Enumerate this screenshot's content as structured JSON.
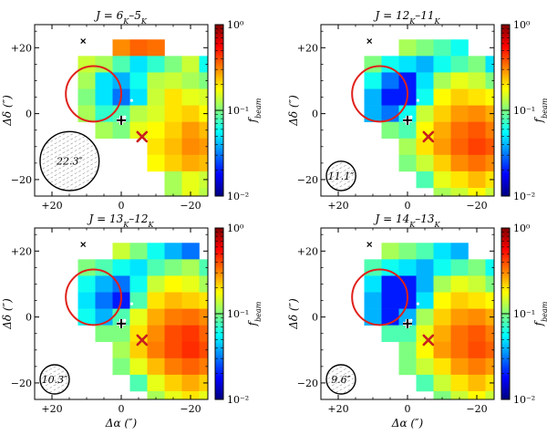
{
  "figure": {
    "colorscale": {
      "colors": [
        "#00007f",
        "#0000ff",
        "#007fff",
        "#00ffff",
        "#7fff7f",
        "#ffff00",
        "#ff7f00",
        "#ff0000",
        "#7f0000"
      ],
      "ticks": [
        "10⁻²",
        "10⁻¹",
        "10⁰"
      ],
      "label": "f_beam"
    },
    "colors": {
      "circle": "#e0201a",
      "cross": "#c81e1e",
      "plus": "#000000",
      "star_marker": "#ffffff"
    }
  },
  "chart_data": [
    {
      "type": "heatmap",
      "title": "J = 6_K–5_K",
      "xlabel": "",
      "ylabel": "Δδ (″)",
      "colorbar_label": "f_beam",
      "xlim": [
        25,
        -25
      ],
      "ylim": [
        -25,
        27
      ],
      "xticks": [
        "+20",
        "0",
        "−20"
      ],
      "yticks": [
        "+20",
        "0",
        "−20"
      ],
      "colorbar_range": [
        0.01,
        1
      ],
      "colorbar_ticks": [
        "10⁻²",
        "10⁻¹",
        "10⁰"
      ],
      "beam": "22.3″",
      "grid_step_arcsec": 5,
      "grid_x_first": 10,
      "grid_y_first": 20,
      "cells": [
        [
          0,
          0,
          0.3,
          0.36,
          0.34
        ],
        [
          0.14,
          0.12,
          0.08,
          0.05,
          0.07,
          0.1,
          0.14,
          0.06,
          0.04
        ],
        [
          0.12,
          0.05,
          0.04,
          0.06,
          0.13,
          0.14,
          0.12,
          0.1,
          0.08,
          0.09
        ],
        [
          0.1,
          0.05,
          0.03,
          0.05,
          0.14,
          0.2,
          0.16,
          0.15,
          0.13,
          0.14,
          0.12
        ],
        [
          0.12,
          0.07,
          0.08,
          0.13,
          0.15,
          0.2,
          0.22,
          0.18,
          0.16,
          0.15,
          0.12
        ],
        [
          0,
          0.12,
          0.1,
          0.16,
          0.18,
          0.22,
          0.28,
          0.24,
          0.18,
          0.15,
          0.08,
          0.1
        ],
        [
          0,
          0,
          0,
          0,
          0.2,
          0.24,
          0.3,
          0.28,
          0.22,
          0.16,
          0.12,
          0.13
        ],
        [
          0,
          0,
          0,
          0,
          0.18,
          0.22,
          0.26,
          0.24,
          0.2,
          0.18,
          0.15,
          0.09
        ],
        [
          0,
          0,
          0,
          0,
          0,
          0.12,
          0.16,
          0.14,
          0.12,
          0.1,
          0
        ],
        [
          0,
          0,
          0,
          0,
          0,
          0.12,
          0.16,
          0.13,
          0.18,
          0.1
        ]
      ],
      "circle": {
        "ra": 8,
        "dec": 6,
        "radius": 8
      },
      "source_cross": {
        "ra": -6,
        "dec": -7
      },
      "source_plus": {
        "ra": 0,
        "dec": -2
      },
      "source_x_top": {
        "ra": 11,
        "dec": 22
      }
    },
    {
      "type": "heatmap",
      "title": "J = 12_K–11_K",
      "xlabel": "",
      "ylabel": "Δδ (″)",
      "colorbar_label": "f_beam",
      "xlim": [
        25,
        -25
      ],
      "ylim": [
        -25,
        27
      ],
      "xticks": [
        "+20",
        "0",
        "−20"
      ],
      "yticks": [
        "+20",
        "0",
        "−20"
      ],
      "colorbar_range": [
        0.01,
        1
      ],
      "colorbar_ticks": [
        "10⁻²",
        "10⁻¹",
        "10⁰"
      ],
      "beam": "11.1″",
      "grid_step_arcsec": 5,
      "grid_x_first": 10,
      "grid_y_first": 20,
      "cells": [
        [
          0,
          0,
          0.12,
          0.1,
          0.08,
          0.06
        ],
        [
          0.1,
          0.06,
          0.05,
          0.04,
          0.06,
          0.08,
          0.1,
          0.05,
          0.03,
          0.02
        ],
        [
          0.06,
          0.03,
          0.02,
          0.05,
          0.12,
          0.16,
          0.14,
          0.1,
          0.08,
          0.06,
          0.04
        ],
        [
          0.04,
          0.02,
          0.02,
          0.06,
          0.18,
          0.22,
          0.2,
          0.18,
          0.15,
          0.12,
          0.06
        ],
        [
          0.04,
          0.03,
          0.06,
          0.14,
          0.22,
          0.28,
          0.3,
          0.26,
          0.2,
          0.14,
          0.1
        ],
        [
          0,
          0.1,
          0.08,
          0.18,
          0.26,
          0.34,
          0.38,
          0.32,
          0.26,
          0.18,
          0.1,
          0.06
        ],
        [
          0,
          0,
          0.12,
          0.2,
          0.28,
          0.36,
          0.42,
          0.38,
          0.3,
          0.2,
          0.12,
          0.08
        ],
        [
          0,
          0,
          0.1,
          0.14,
          0.22,
          0.3,
          0.34,
          0.3,
          0.24,
          0.18,
          0.14,
          0.1
        ],
        [
          0,
          0,
          0,
          0.08,
          0.16,
          0.2,
          0.24,
          0.2,
          0.16,
          0.12,
          0
        ],
        [
          0,
          0,
          0,
          0,
          0.12,
          0.14,
          0.18,
          0.14,
          0.12,
          0.1
        ]
      ],
      "circle": {
        "ra": 8,
        "dec": 6,
        "radius": 8
      },
      "source_cross": {
        "ra": -6,
        "dec": -7
      },
      "source_plus": {
        "ra": 0,
        "dec": -2
      },
      "source_x_top": {
        "ra": 11,
        "dec": 22
      }
    },
    {
      "type": "heatmap",
      "title": "J = 13_K–12_K",
      "xlabel": "Δα (″)",
      "ylabel": "Δδ (″)",
      "colorbar_label": "f_beam",
      "xlim": [
        25,
        -25
      ],
      "ylim": [
        -25,
        27
      ],
      "xticks": [
        "+20",
        "0",
        "−20"
      ],
      "yticks": [
        "+20",
        "0",
        "−20"
      ],
      "colorbar_range": [
        0.01,
        1
      ],
      "colorbar_ticks": [
        "10⁻²",
        "10⁻¹",
        "10⁰"
      ],
      "beam": "10.3″",
      "grid_step_arcsec": 5,
      "grid_x_first": 10,
      "grid_y_first": 20,
      "cells": [
        [
          0,
          0,
          0.14,
          0.1,
          0.06,
          0.04,
          0.03
        ],
        [
          0.1,
          0.08,
          0.06,
          0.05,
          0.08,
          0.1,
          0.12,
          0.08,
          0.05,
          0.03
        ],
        [
          0.06,
          0.04,
          0.03,
          0.06,
          0.14,
          0.18,
          0.16,
          0.12,
          0.1,
          0.08,
          0.05
        ],
        [
          0.05,
          0.03,
          0.02,
          0.08,
          0.2,
          0.24,
          0.22,
          0.2,
          0.16,
          0.13,
          0.07
        ],
        [
          0.06,
          0.04,
          0.08,
          0.16,
          0.26,
          0.32,
          0.34,
          0.3,
          0.22,
          0.15,
          0.1
        ],
        [
          0,
          0.1,
          0.1,
          0.2,
          0.3,
          0.4,
          0.44,
          0.36,
          0.28,
          0.19,
          0.1,
          0.06
        ],
        [
          0,
          0,
          0.12,
          0.22,
          0.32,
          0.4,
          0.46,
          0.4,
          0.32,
          0.22,
          0.12,
          0.08
        ],
        [
          0,
          0,
          0.1,
          0.16,
          0.24,
          0.32,
          0.36,
          0.32,
          0.26,
          0.18,
          0.14,
          0.1
        ],
        [
          0,
          0,
          0,
          0.08,
          0.16,
          0.22,
          0.26,
          0.22,
          0.16,
          0.12,
          0
        ],
        [
          0,
          0,
          0,
          0,
          0.12,
          0.16,
          0.2,
          0.16,
          0.12,
          0.1
        ]
      ],
      "circle": {
        "ra": 8,
        "dec": 6,
        "radius": 8
      },
      "source_cross": {
        "ra": -6,
        "dec": -7
      },
      "source_plus": {
        "ra": 0,
        "dec": -2
      },
      "source_x_top": {
        "ra": 11,
        "dec": 22
      }
    },
    {
      "type": "heatmap",
      "title": "J = 14_K–13_K",
      "xlabel": "Δα (″)",
      "ylabel": "Δδ (″)",
      "colorbar_label": "f_beam",
      "xlim": [
        25,
        -25
      ],
      "ylim": [
        -25,
        27
      ],
      "xticks": [
        "+20",
        "0",
        "−20"
      ],
      "yticks": [
        "+20",
        "0",
        "−20"
      ],
      "colorbar_range": [
        0.01,
        1
      ],
      "colorbar_ticks": [
        "10⁻²",
        "10⁻¹",
        "10⁰"
      ],
      "beam": "9.6″",
      "grid_step_arcsec": 5,
      "grid_x_first": 10,
      "grid_y_first": 20,
      "cells": [
        [
          0,
          0.12,
          0.1,
          0.08,
          0.05,
          0.04
        ],
        [
          0.08,
          0.06,
          0.05,
          0.04,
          0.06,
          0.08,
          0.1,
          0.06,
          0.04,
          0.03
        ],
        [
          0.05,
          0.02,
          0.02,
          0.04,
          0.12,
          0.16,
          0.14,
          0.1,
          0.08,
          0.06,
          0.04
        ],
        [
          0.04,
          0.02,
          0.02,
          0.05,
          0.18,
          0.22,
          0.2,
          0.18,
          0.14,
          0.12,
          0.06
        ],
        [
          0.04,
          0.02,
          0.04,
          0.12,
          0.22,
          0.28,
          0.3,
          0.26,
          0.2,
          0.14,
          0.1
        ],
        [
          0,
          0.08,
          0.08,
          0.16,
          0.26,
          0.34,
          0.38,
          0.32,
          0.24,
          0.17,
          0.1,
          0.06
        ],
        [
          0,
          0,
          0.1,
          0.18,
          0.28,
          0.34,
          0.4,
          0.36,
          0.28,
          0.2,
          0.12,
          0.08
        ],
        [
          0,
          0,
          0.1,
          0.14,
          0.2,
          0.28,
          0.32,
          0.28,
          0.22,
          0.16,
          0.12,
          0.09
        ],
        [
          0,
          0,
          0,
          0.08,
          0.14,
          0.2,
          0.24,
          0.2,
          0.16,
          0.12,
          0
        ],
        [
          0,
          0,
          0,
          0,
          0.1,
          0.14,
          0.18,
          0.14,
          0.12,
          0.1
        ]
      ],
      "circle": {
        "ra": 8,
        "dec": 6,
        "radius": 8
      },
      "source_cross": {
        "ra": -6,
        "dec": -7
      },
      "source_plus": {
        "ra": 0,
        "dec": -2
      },
      "source_x_top": {
        "ra": 11,
        "dec": 22
      }
    }
  ]
}
